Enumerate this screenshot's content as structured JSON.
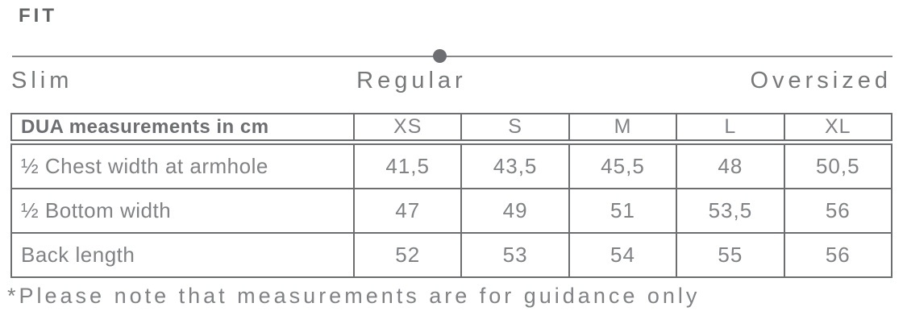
{
  "page": {
    "title": "FIT"
  },
  "fit_selector": {
    "options": [
      "Slim",
      "Regular",
      "Oversized"
    ],
    "selected": "Regular"
  },
  "size_table": {
    "columns": [
      "DUA measurements in cm",
      "XS",
      "S",
      "M",
      "L",
      "XL"
    ],
    "rows": [
      {
        "label": "½ Chest width at armhole",
        "values": [
          "41,5",
          "43,5",
          "45,5",
          "48",
          "50,5"
        ]
      },
      {
        "label": "½ Bottom width",
        "values": [
          "47",
          "49",
          "51",
          "53,5",
          "56"
        ]
      },
      {
        "label": "Back length",
        "values": [
          "52",
          "53",
          "54",
          "55",
          "56"
        ]
      }
    ]
  },
  "footnote": "*Please note that measurements are for guidance only",
  "colors": {
    "heading_text": "#636466",
    "body_text": "#808285",
    "scale_label_text": "#77787a",
    "table_border": "#6d6e71",
    "slider_line": "#87888a",
    "slider_dot": "#6d6e71",
    "background": "#ffffff"
  }
}
